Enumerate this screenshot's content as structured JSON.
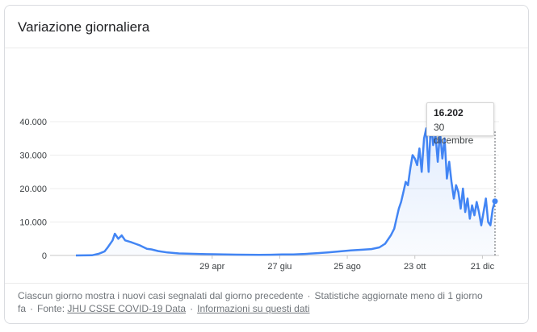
{
  "card": {
    "title": "Variazione giornaliera"
  },
  "tooltip": {
    "value": "16.202",
    "date": "30 dicembre"
  },
  "footer": {
    "description": "Ciascun giorno mostra i nuovi casi segnalati dal giorno precedente",
    "updated": "Statistiche aggiornate meno di 1 giorno fa",
    "source_label": "Fonte:",
    "source_link": "JHU CSSE COVID-19 Data",
    "info_link": "Informazioni su questi dati"
  },
  "chart_data": {
    "type": "area",
    "title": "Variazione giornaliera",
    "y_ticks": [
      "0",
      "10.000",
      "20.000",
      "30.000",
      "40.000"
    ],
    "x_ticks": [
      "29 apr",
      "27 giu",
      "25 ago",
      "23 ott",
      "21 dic"
    ],
    "ylim": [
      0,
      42000
    ],
    "grid": true,
    "color": "#4285f4",
    "series": [
      {
        "values": [
          [
            0,
            0
          ],
          [
            14,
            50
          ],
          [
            20,
            500
          ],
          [
            25,
            1200
          ],
          [
            28,
            2500
          ],
          [
            32,
            4500
          ],
          [
            34,
            6500
          ],
          [
            37,
            5000
          ],
          [
            40,
            6000
          ],
          [
            43,
            4500
          ],
          [
            48,
            4000
          ],
          [
            52,
            3500
          ],
          [
            56,
            3000
          ],
          [
            62,
            2000
          ],
          [
            66,
            1800
          ],
          [
            72,
            1300
          ],
          [
            80,
            900
          ],
          [
            90,
            600
          ],
          [
            100,
            500
          ],
          [
            110,
            400
          ],
          [
            120,
            350
          ],
          [
            130,
            300
          ],
          [
            140,
            250
          ],
          [
            150,
            220
          ],
          [
            160,
            200
          ],
          [
            170,
            220
          ],
          [
            180,
            300
          ],
          [
            190,
            300
          ],
          [
            200,
            450
          ],
          [
            210,
            650
          ],
          [
            220,
            900
          ],
          [
            230,
            1200
          ],
          [
            240,
            1500
          ],
          [
            250,
            1700
          ],
          [
            258,
            1900
          ],
          [
            265,
            2400
          ],
          [
            270,
            3500
          ],
          [
            275,
            6000
          ],
          [
            278,
            8000
          ],
          [
            280,
            11000
          ],
          [
            282,
            14000
          ],
          [
            284,
            16000
          ],
          [
            286,
            19000
          ],
          [
            288,
            22000
          ],
          [
            290,
            21000
          ],
          [
            292,
            26000
          ],
          [
            294,
            30000
          ],
          [
            296,
            29000
          ],
          [
            298,
            27000
          ],
          [
            300,
            32000
          ],
          [
            302,
            25000
          ],
          [
            304,
            35000
          ],
          [
            306,
            38000
          ],
          [
            308,
            25000
          ],
          [
            310,
            40000
          ],
          [
            312,
            33000
          ],
          [
            314,
            36000
          ],
          [
            316,
            28000
          ],
          [
            318,
            37000
          ],
          [
            320,
            29000
          ],
          [
            322,
            35000
          ],
          [
            324,
            23000
          ],
          [
            326,
            28000
          ],
          [
            328,
            22000
          ],
          [
            330,
            17000
          ],
          [
            332,
            21000
          ],
          [
            334,
            19000
          ],
          [
            336,
            14000
          ],
          [
            338,
            20000
          ],
          [
            340,
            13000
          ],
          [
            342,
            17000
          ],
          [
            344,
            11000
          ],
          [
            346,
            15000
          ],
          [
            348,
            12000
          ],
          [
            350,
            16000
          ],
          [
            352,
            13000
          ],
          [
            354,
            9000
          ],
          [
            356,
            13000
          ],
          [
            358,
            17000
          ],
          [
            360,
            10000
          ],
          [
            362,
            9000
          ],
          [
            364,
            14000
          ],
          [
            366,
            16202
          ]
        ]
      }
    ]
  }
}
